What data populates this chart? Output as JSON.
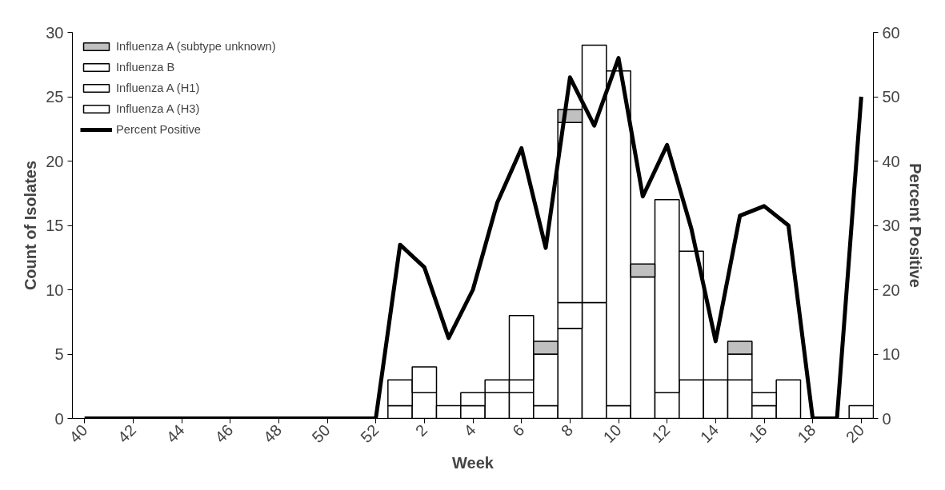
{
  "chart_data": {
    "type": "bar",
    "stacked": true,
    "xlabel": "Week",
    "ylabel": "Count of Isolates",
    "y2label": "Percent Positive",
    "categories": [
      "40",
      null,
      "42",
      null,
      "44",
      null,
      "46",
      null,
      "48",
      null,
      "50",
      null,
      "52",
      null,
      "2",
      null,
      "4",
      null,
      "6",
      null,
      "8",
      null,
      "10",
      null,
      "12",
      null,
      "14",
      null,
      "16",
      null,
      "18",
      null,
      "20"
    ],
    "series": [
      {
        "name": "Influenza A (H3)",
        "color": "#ffffff",
        "values": [
          null,
          null,
          null,
          null,
          null,
          null,
          null,
          null,
          null,
          null,
          null,
          null,
          null,
          1,
          2,
          1,
          1,
          2,
          2,
          1,
          7,
          9,
          1,
          11,
          2,
          3,
          3,
          3,
          1,
          3,
          null,
          null,
          1
        ]
      },
      {
        "name": "Influenza A (H1)",
        "color": "#ffffff",
        "values": [
          null,
          null,
          null,
          null,
          null,
          null,
          null,
          null,
          null,
          null,
          null,
          null,
          null,
          2,
          2,
          null,
          1,
          1,
          1,
          4,
          2,
          20,
          26,
          null,
          15,
          10,
          null,
          2,
          1,
          null,
          null,
          null,
          null
        ]
      },
      {
        "name": "Influenza B",
        "color": "#ffffff",
        "values": [
          null,
          null,
          null,
          null,
          null,
          null,
          null,
          null,
          null,
          null,
          null,
          null,
          null,
          null,
          null,
          null,
          null,
          null,
          5,
          null,
          14,
          null,
          null,
          null,
          null,
          null,
          null,
          null,
          null,
          null,
          null,
          null,
          null
        ]
      },
      {
        "name": "Influenza A (subtype unknown)",
        "color": "#c0c0c0",
        "values": [
          null,
          null,
          null,
          null,
          null,
          null,
          null,
          null,
          null,
          null,
          null,
          null,
          null,
          null,
          null,
          null,
          null,
          null,
          null,
          1,
          1,
          null,
          null,
          1,
          null,
          null,
          null,
          1,
          null,
          null,
          null,
          null,
          null
        ]
      },
      {
        "name": "Percent Positive",
        "type": "line",
        "axis": "y2",
        "color": "#000000",
        "values": [
          0,
          0,
          0,
          0,
          0,
          0,
          0,
          0,
          0,
          0,
          0,
          0,
          0,
          27,
          23.5,
          12.5,
          20,
          33.5,
          42,
          26.5,
          53,
          45.5,
          56,
          34.5,
          42.5,
          29.5,
          12,
          31.5,
          33,
          30,
          0,
          0,
          50
        ]
      }
    ],
    "ylim": [
      0,
      30
    ],
    "yticks": [
      0,
      5,
      10,
      15,
      20,
      25,
      30
    ],
    "y2lim": [
      0,
      60
    ],
    "y2ticks": [
      0,
      10,
      20,
      30,
      40,
      50,
      60
    ],
    "grid": false,
    "legend": "top left"
  }
}
